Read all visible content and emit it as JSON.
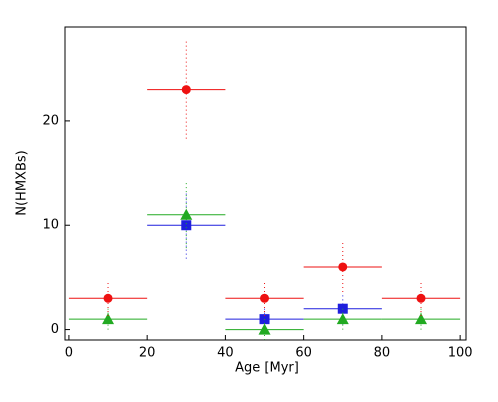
{
  "chart_data": {
    "type": "scatter",
    "x_label": "Age [Myr]",
    "y_label": "N(HMXBs)",
    "xlim": [
      -1,
      101.5
    ],
    "ylim": [
      -1,
      29
    ],
    "xticks": [
      0,
      20,
      40,
      60,
      80,
      100
    ],
    "yticks": [
      0,
      10,
      20
    ],
    "series": [
      {
        "color": "#1f1fdd",
        "marker": "square",
        "x": [
          30,
          50,
          70
        ],
        "values": [
          10,
          1,
          2
        ],
        "xerr": [
          10,
          10,
          10
        ],
        "yerr": [
          3.2,
          1,
          1.5
        ]
      },
      {
        "color": "#22aa22",
        "marker": "triangle",
        "x": [
          10,
          30,
          50,
          70,
          90
        ],
        "values": [
          1,
          11,
          0,
          1,
          1
        ],
        "xerr": [
          10,
          10,
          10,
          10,
          10
        ],
        "yerr": [
          1,
          3.2,
          1,
          1,
          1
        ]
      },
      {
        "color": "#ee1111",
        "marker": "circle",
        "x": [
          10,
          30,
          50,
          70,
          90
        ],
        "values": [
          3,
          23,
          3,
          6,
          3
        ],
        "xerr": [
          10,
          10,
          10,
          10,
          10
        ],
        "yerr": [
          1.7,
          4.7,
          1.7,
          2.4,
          1.7
        ]
      }
    ]
  }
}
